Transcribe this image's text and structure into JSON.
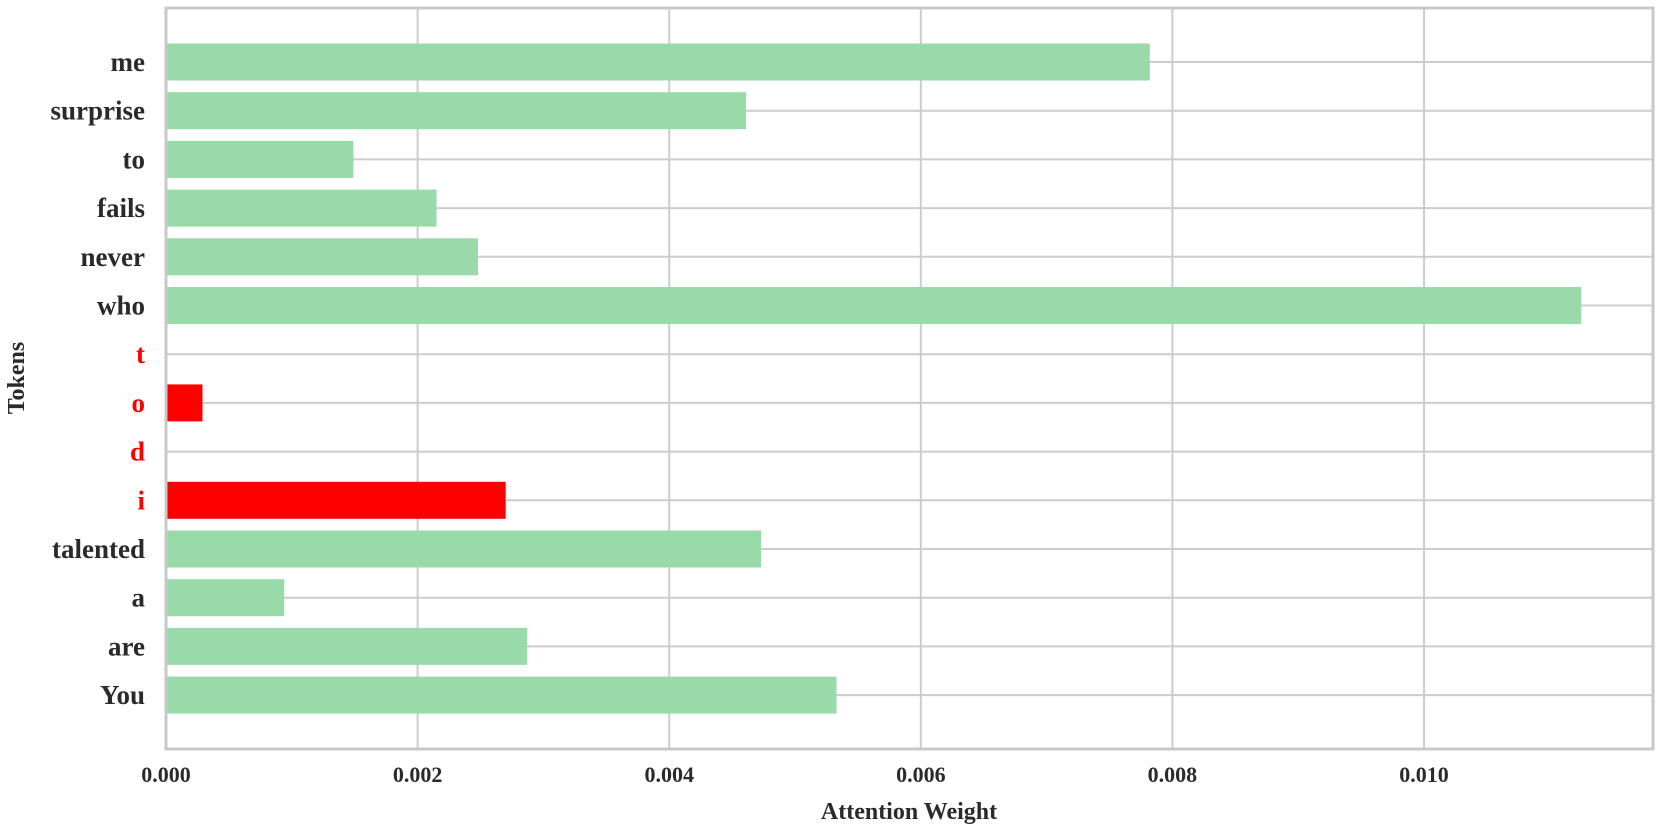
{
  "chart_data": {
    "type": "bar",
    "orientation": "horizontal",
    "title": "",
    "xlabel": "Attention Weight",
    "ylabel": "Tokens",
    "xlim": [
      0,
      0.01182
    ],
    "xticks": [
      "0.000",
      "0.002",
      "0.004",
      "0.006",
      "0.008",
      "0.010"
    ],
    "xtick_values": [
      0,
      0.002,
      0.004,
      0.006,
      0.008,
      0.01
    ],
    "grid": true,
    "categories": [
      "me",
      "surprise",
      "to",
      "fails",
      "never",
      "who",
      "t",
      "o",
      "d",
      "i",
      "talented",
      "a",
      "are",
      "You"
    ],
    "values": [
      0.00782,
      0.00461,
      0.00149,
      0.00215,
      0.00248,
      0.01125,
      0.0,
      0.00029,
      0.0,
      0.0027,
      0.00473,
      0.00094,
      0.00287,
      0.00533
    ],
    "highlighted": [
      false,
      false,
      false,
      false,
      false,
      false,
      true,
      true,
      true,
      true,
      false,
      false,
      false,
      false
    ],
    "colors": {
      "bar": "#98dba9",
      "highlight": "#ff0000",
      "label": "#2a2a2a",
      "grid": "#cccccc",
      "axis": "#c8c8c8"
    }
  }
}
